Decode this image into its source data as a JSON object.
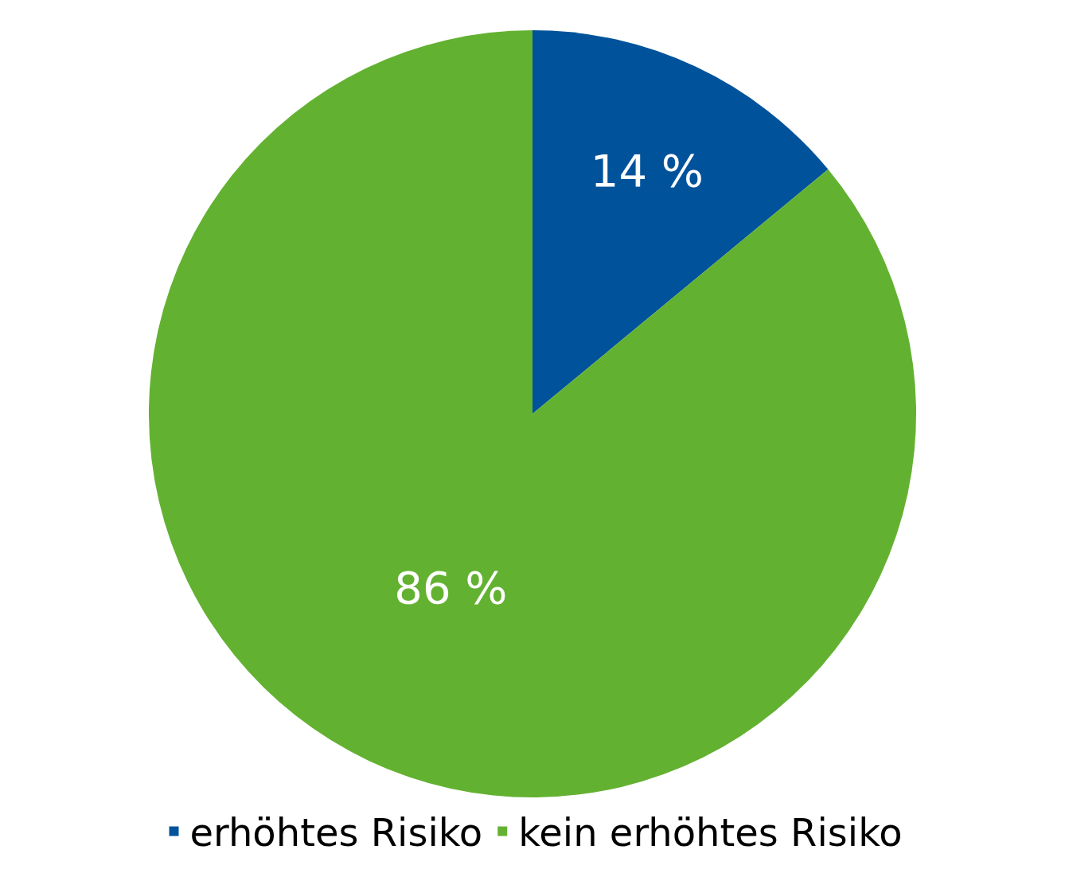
{
  "chart_data": {
    "type": "pie",
    "categories": [
      "erhöhtes Risiko",
      "kein erhöhtes Risiko"
    ],
    "values": [
      14,
      86
    ],
    "colors": [
      "#00529b",
      "#63b131"
    ],
    "value_labels": [
      "14 %",
      "86 %"
    ],
    "legend": "bottom"
  }
}
